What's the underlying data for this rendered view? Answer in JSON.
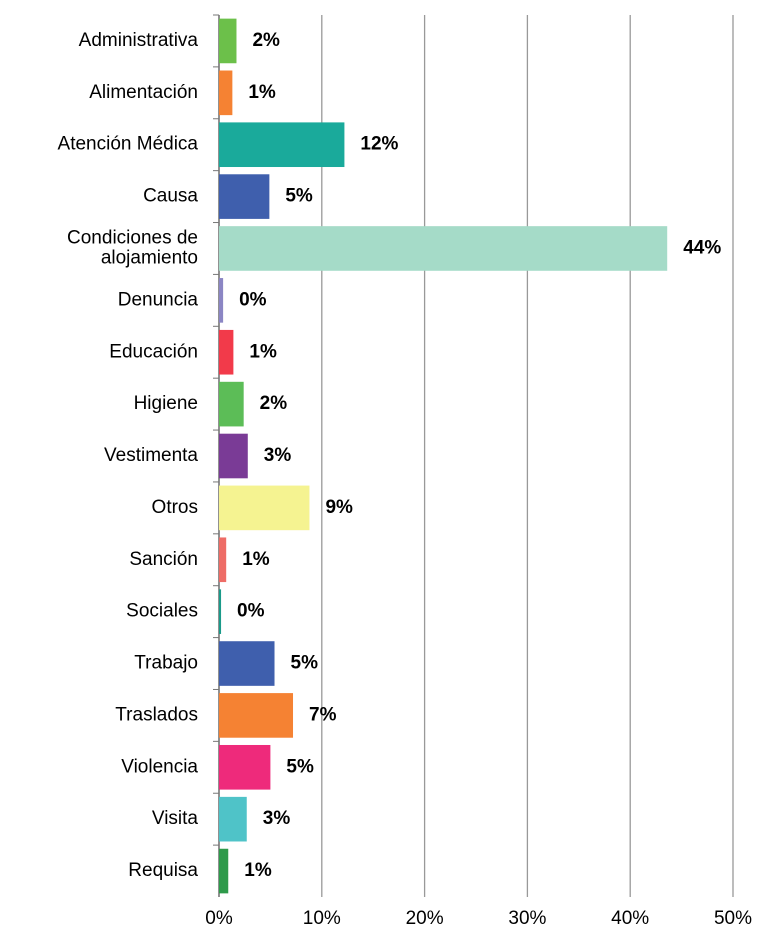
{
  "chart_data": {
    "type": "bar",
    "orientation": "horizontal",
    "categories": [
      "Administrativa",
      "Alimentación",
      "Atención Médica",
      "Causa",
      "Condiciones de\nalojamiento",
      "Denuncia",
      "Educación",
      "Higiene",
      "Vestimenta",
      "Otros",
      "Sanción",
      "Sociales",
      "Trabajo",
      "Traslados",
      "Violencia",
      "Visita",
      "Requisa"
    ],
    "values": [
      1.7,
      1.3,
      12.2,
      4.9,
      43.6,
      0.4,
      1.4,
      2.4,
      2.8,
      8.8,
      0.7,
      0.2,
      5.4,
      7.2,
      5.0,
      2.7,
      0.9
    ],
    "value_labels": [
      "2%",
      "1%",
      "12%",
      "5%",
      "44%",
      "0%",
      "1%",
      "2%",
      "3%",
      "9%",
      "1%",
      "0%",
      "5%",
      "7%",
      "5%",
      "3%",
      "1%"
    ],
    "colors": [
      "#6cc04a",
      "#f58233",
      "#1aaa9b",
      "#3f5fad",
      "#a5dbc8",
      "#8b86c4",
      "#f23a4a",
      "#5cbd57",
      "#7a3b96",
      "#f5f391",
      "#ee6c66",
      "#1a9a8a",
      "#3f5fad",
      "#f58233",
      "#ee2a7b",
      "#4fc3c8",
      "#2e9a4a"
    ],
    "xlim": [
      0,
      50
    ],
    "xticks": [
      {
        "value": 0,
        "label": "0%"
      },
      {
        "value": 10,
        "label": "10%"
      },
      {
        "value": 20,
        "label": "20%"
      },
      {
        "value": 30,
        "label": "30%"
      },
      {
        "value": 40,
        "label": "40%"
      },
      {
        "value": 50,
        "label": "50%"
      }
    ],
    "grid": true
  }
}
